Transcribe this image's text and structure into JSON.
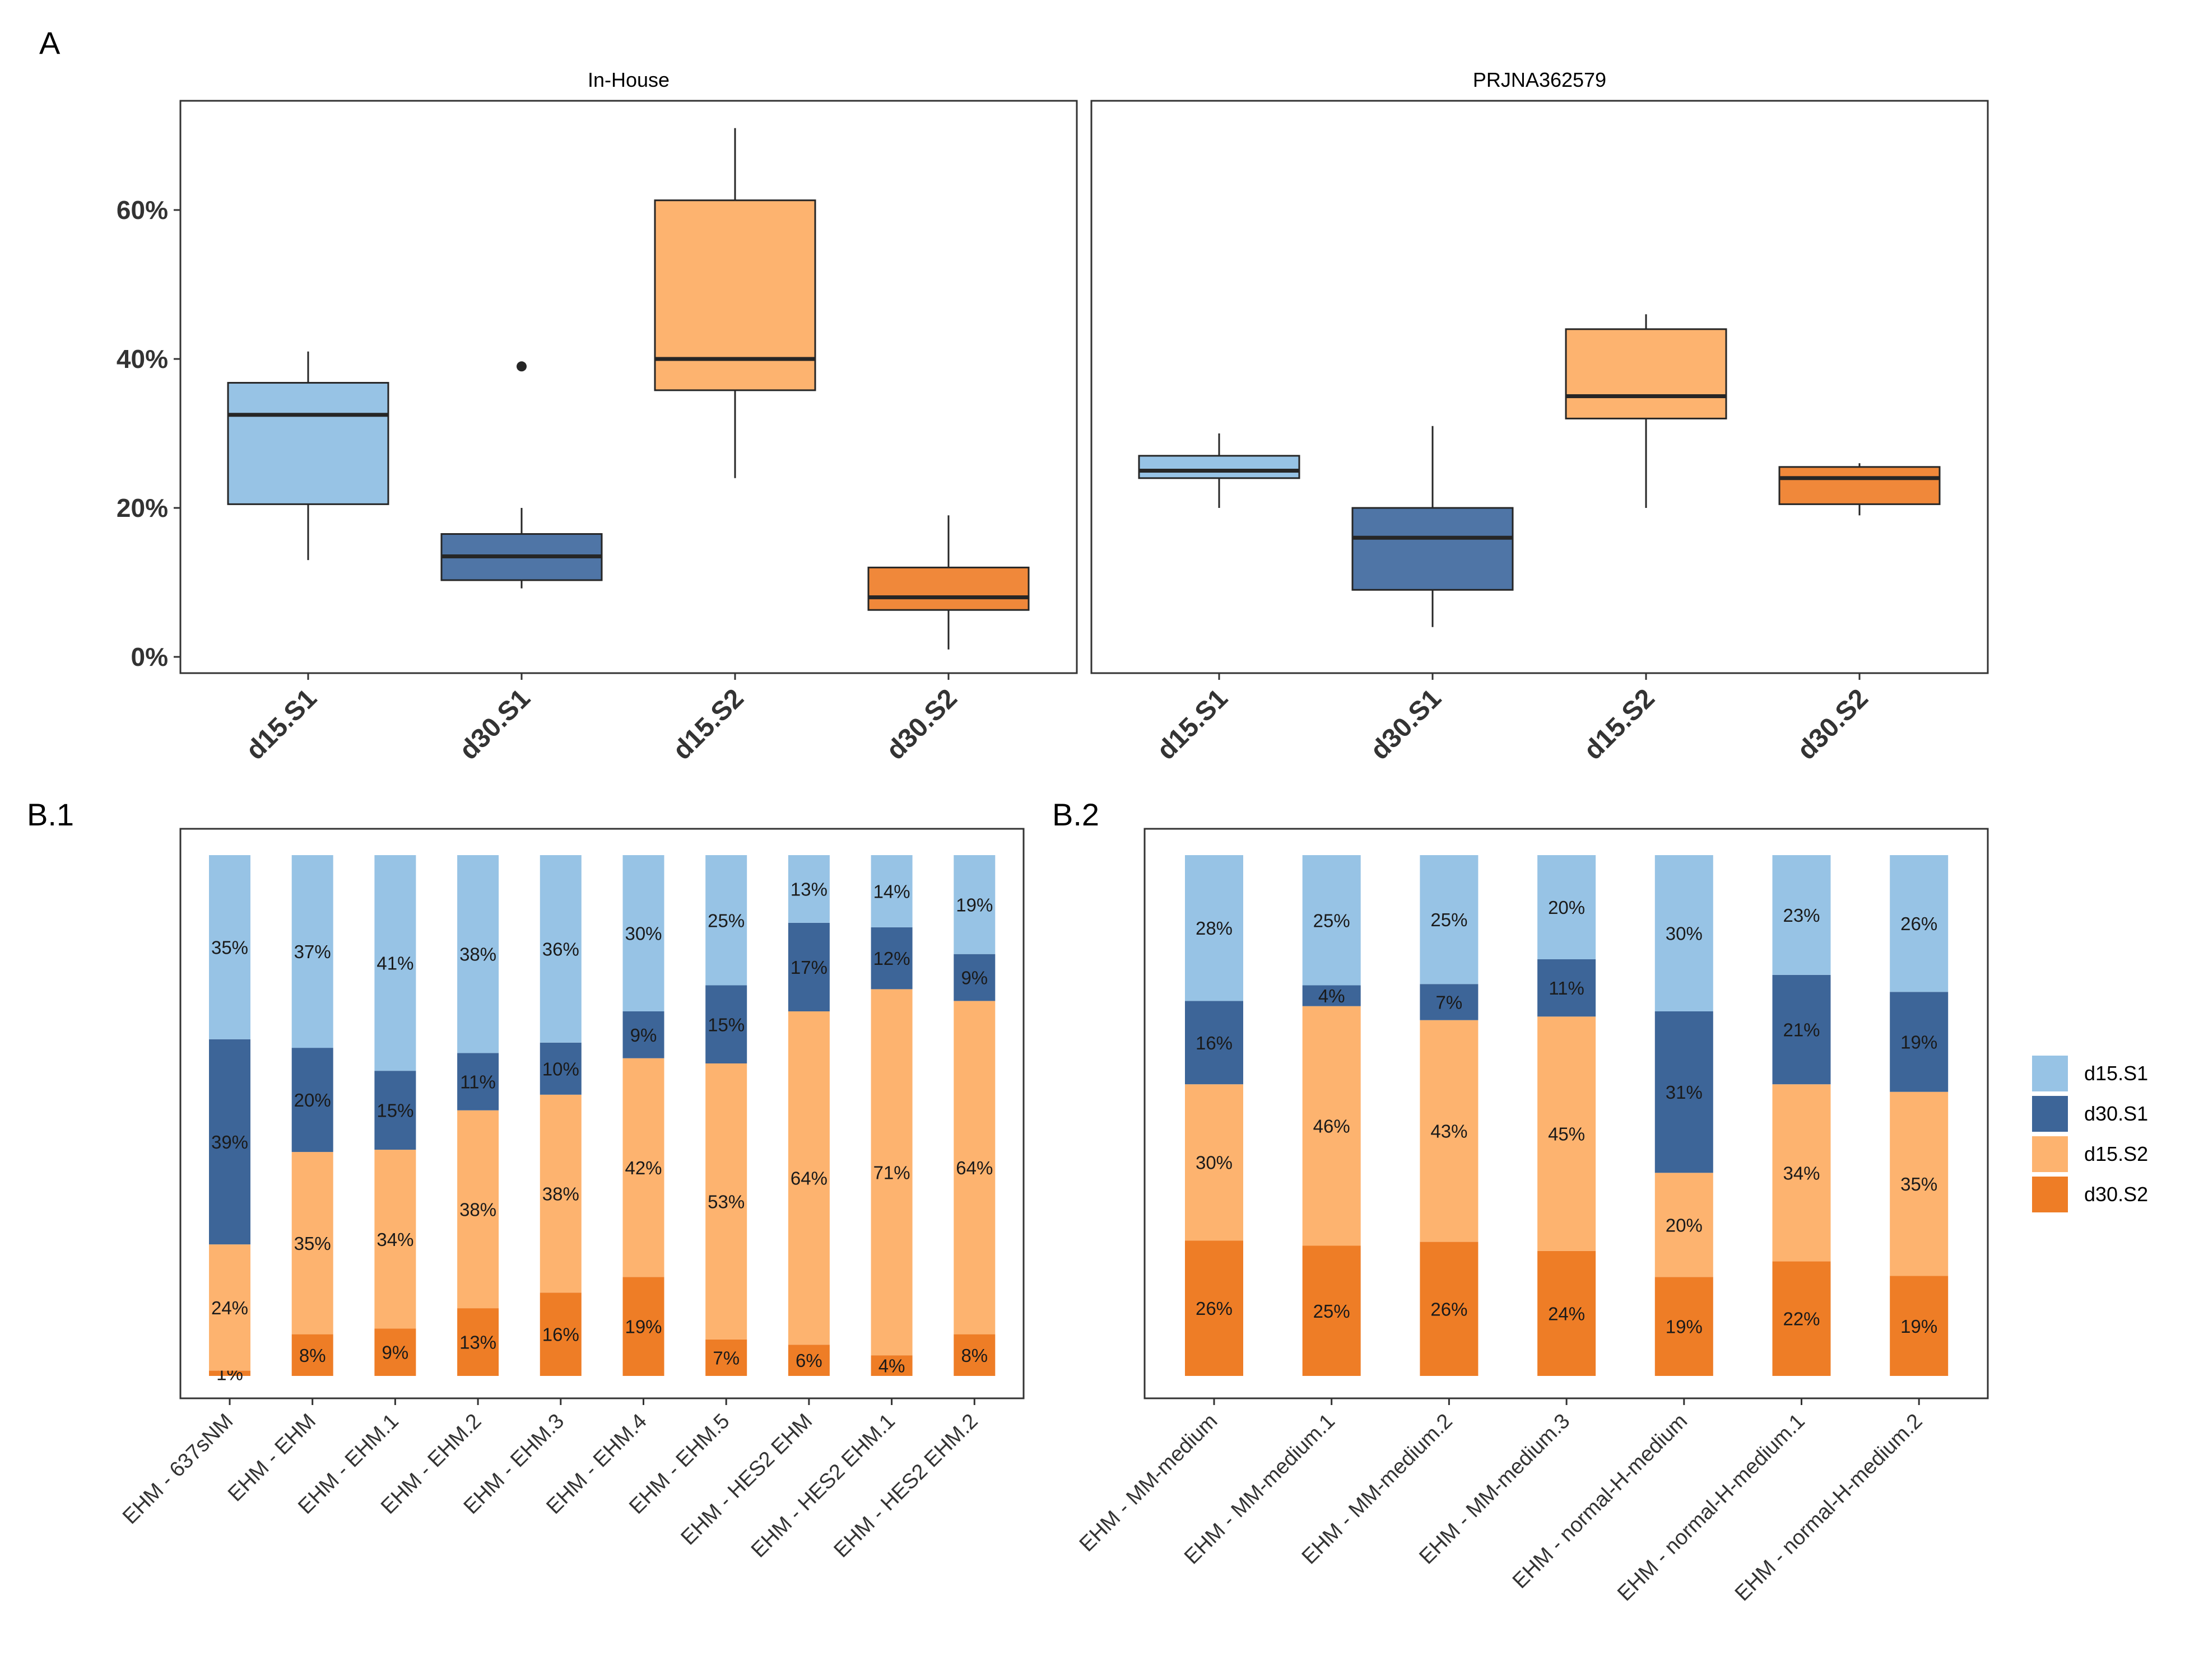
{
  "colors": {
    "d15.S1": "#97c3e5",
    "d30.S1": "#3d6598",
    "d15.S2": "#fdb36f",
    "d30.S2": "#ee7d26",
    "box_d30.S1": "#4f75a6",
    "box_d30.S2": "#f0883a",
    "line": "#262626"
  },
  "panel_labels": {
    "a": "A",
    "b1": "B.1",
    "b2": "B.2"
  },
  "chart_data": [
    {
      "type": "boxplot",
      "panel": "A",
      "facet": "In-House",
      "categories": [
        "d15.S1",
        "d30.S1",
        "d15.S2",
        "d30.S2"
      ],
      "ylim": [
        -2,
        73
      ],
      "yticks": [
        0,
        20,
        40,
        60
      ],
      "ytick_labels": [
        "0%",
        "20%",
        "40%",
        "60%"
      ],
      "boxes": [
        {
          "name": "d15.S1",
          "whisker_low": 13,
          "q1": 20.5,
          "median": 32.5,
          "q3": 36.8,
          "whisker_high": 41,
          "outliers": []
        },
        {
          "name": "d30.S1",
          "whisker_low": 9.2,
          "q1": 10.3,
          "median": 13.5,
          "q3": 16.5,
          "whisker_high": 20,
          "outliers": [
            39
          ]
        },
        {
          "name": "d15.S2",
          "whisker_low": 24,
          "q1": 35.8,
          "median": 40,
          "q3": 61.3,
          "whisker_high": 71,
          "outliers": []
        },
        {
          "name": "d30.S2",
          "whisker_low": 1,
          "q1": 6.3,
          "median": 8,
          "q3": 12,
          "whisker_high": 19,
          "outliers": []
        }
      ]
    },
    {
      "type": "boxplot",
      "panel": "A",
      "facet": "PRJNA362579",
      "categories": [
        "d15.S1",
        "d30.S1",
        "d15.S2",
        "d30.S2"
      ],
      "ylim": [
        -2,
        73
      ],
      "yticks": [
        0,
        20,
        40,
        60
      ],
      "boxes": [
        {
          "name": "d15.S1",
          "whisker_low": 20,
          "q1": 24,
          "median": 25,
          "q3": 27,
          "whisker_high": 30,
          "outliers": []
        },
        {
          "name": "d30.S1",
          "whisker_low": 4,
          "q1": 9,
          "median": 16,
          "q3": 20,
          "whisker_high": 31,
          "outliers": []
        },
        {
          "name": "d15.S2",
          "whisker_low": 20,
          "q1": 32,
          "median": 35,
          "q3": 44,
          "whisker_high": 46,
          "outliers": []
        },
        {
          "name": "d30.S2",
          "whisker_low": 19,
          "q1": 20.5,
          "median": 24,
          "q3": 25.5,
          "whisker_high": 26,
          "outliers": []
        }
      ]
    },
    {
      "type": "stacked-bar",
      "panel": "B.1",
      "stack_order_bottom_to_top": [
        "d30.S2",
        "d15.S2",
        "d30.S1",
        "d15.S1"
      ],
      "categories": [
        "EHM - 637sNM",
        "EHM - EHM",
        "EHM - EHM.1",
        "EHM - EHM.2",
        "EHM - EHM.3",
        "EHM - EHM.4",
        "EHM - EHM.5",
        "EHM - HES2 EHM",
        "EHM - HES2 EHM.1",
        "EHM - HES2 EHM.2"
      ],
      "series": [
        {
          "name": "d15.S1",
          "values": [
            35,
            37,
            41,
            38,
            36,
            30,
            25,
            13,
            14,
            19
          ],
          "labels": [
            "35%",
            "37%",
            "41%",
            "38%",
            "36%",
            "30%",
            "25%",
            "13%",
            "14%",
            "19%"
          ]
        },
        {
          "name": "d30.S1",
          "values": [
            39,
            20,
            15,
            11,
            10,
            9,
            15,
            17,
            12,
            9
          ],
          "labels": [
            "39%",
            "20%",
            "15%",
            "11%",
            "10%",
            "9%",
            "15%",
            "17%",
            "12%",
            "9%"
          ]
        },
        {
          "name": "d15.S2",
          "values": [
            24,
            35,
            34,
            38,
            38,
            42,
            53,
            64,
            71,
            64
          ],
          "labels": [
            "24%",
            "35%",
            "34%",
            "38%",
            "38%",
            "42%",
            "53%",
            "64%",
            "71%",
            "64%"
          ]
        },
        {
          "name": "d30.S2",
          "values": [
            1,
            8,
            9,
            13,
            16,
            19,
            7,
            6,
            4,
            8
          ],
          "labels": [
            "1%",
            "8%",
            "9%",
            "13%",
            "16%",
            "19%",
            "7%",
            "6%",
            "4%",
            "8%"
          ]
        }
      ]
    },
    {
      "type": "stacked-bar",
      "panel": "B.2",
      "stack_order_bottom_to_top": [
        "d30.S2",
        "d15.S2",
        "d30.S1",
        "d15.S1"
      ],
      "categories": [
        "EHM - MM-medium",
        "EHM - MM-medium.1",
        "EHM - MM-medium.2",
        "EHM - MM-medium.3",
        "EHM - normal-H-medium",
        "EHM - normal-H-medium.1",
        "EHM - normal-H-medium.2"
      ],
      "series": [
        {
          "name": "d15.S1",
          "values": [
            28,
            25,
            25,
            20,
            30,
            23,
            26
          ],
          "labels": [
            "28%",
            "25%",
            "25%",
            "20%",
            "30%",
            "23%",
            "26%"
          ]
        },
        {
          "name": "d30.S1",
          "values": [
            16,
            4,
            7,
            11,
            31,
            21,
            19
          ],
          "labels": [
            "16%",
            "4%",
            "7%",
            "11%",
            "31%",
            "21%",
            "19%"
          ]
        },
        {
          "name": "d15.S2",
          "values": [
            30,
            46,
            43,
            45,
            20,
            34,
            35
          ],
          "labels": [
            "30%",
            "46%",
            "43%",
            "45%",
            "20%",
            "34%",
            "35%"
          ]
        },
        {
          "name": "d30.S2",
          "values": [
            26,
            25,
            26,
            24,
            19,
            22,
            19
          ],
          "labels": [
            "26%",
            "25%",
            "26%",
            "24%",
            "19%",
            "22%",
            "19%"
          ]
        }
      ],
      "legend": {
        "position": "right",
        "entries": [
          "d15.S1",
          "d30.S1",
          "d15.S2",
          "d30.S2"
        ]
      }
    }
  ]
}
